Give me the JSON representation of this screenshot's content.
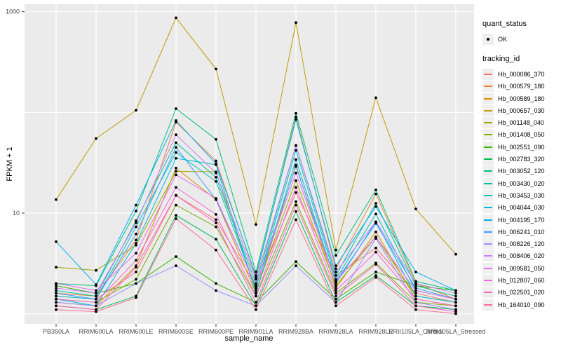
{
  "chart_data": {
    "type": "line",
    "title": "",
    "xlabel": "sample_name",
    "ylabel": "FPKM + 1",
    "y_scale": "log10",
    "ylim": [
      1,
      1000
    ],
    "grid": true,
    "legend_position": "right",
    "y_ticks": [
      {
        "label": "1000",
        "value": 1000
      },
      {
        "label": "10",
        "value": 10
      }
    ],
    "y_gridlines": [
      1,
      10,
      100,
      1000
    ],
    "colors": {
      "panel_bg": "#EBEBEB",
      "grid": "#FFFFFF",
      "tick": "#333333",
      "tick_label": "#4D4D4D",
      "point": "#000000",
      "legend_key_bg": "#EFEFEF"
    },
    "legend": {
      "quant_status_title": "quant_status",
      "quant_status_item": "OK",
      "quant_status_marker": "black-point",
      "tracking_id_title": "tracking_id"
    },
    "x_categories": [
      "PB350LA",
      "RRIM600LA",
      "RRIM600LE",
      "RRIM600SE",
      "RRIM600PE",
      "RRIM901LA",
      "RRIM928BA",
      "RRIM928LA",
      "RRIM928LE",
      "RRII105LA_Control",
      "RRII105LA_Stressed"
    ],
    "series": [
      {
        "name": "Hb_000086_370",
        "color": "#F8766D",
        "values": [
          1.5,
          1.4,
          2.6,
          15,
          8.6,
          1.9,
          16,
          2.4,
          4.5,
          1.6,
          1.3
        ]
      },
      {
        "name": "Hb_000579_180",
        "color": "#EA8331",
        "values": [
          1.6,
          1.5,
          5.4,
          80,
          33,
          2.3,
          90,
          2.8,
          15.5,
          2.0,
          1.4
        ]
      },
      {
        "name": "Hb_000589_180",
        "color": "#D89000",
        "values": [
          1.3,
          1.2,
          3.0,
          28,
          13.6,
          1.6,
          30,
          1.8,
          6.5,
          1.4,
          1.2
        ]
      },
      {
        "name": "Hb_000657_030",
        "color": "#C09B00",
        "values": [
          13.6,
          55,
          105,
          870,
          270,
          7.7,
          780,
          4.3,
          140,
          11,
          3.9
        ]
      },
      {
        "name": "Hb_001148_040",
        "color": "#A3A500",
        "values": [
          2.9,
          2.7,
          4.8,
          26,
          25.7,
          1.7,
          21,
          1.9,
          5.8,
          1.5,
          1.3
        ]
      },
      {
        "name": "Hb_001408_050",
        "color": "#7CAE00",
        "values": [
          1.4,
          1.3,
          2.2,
          12,
          7.3,
          1.5,
          13,
          1.6,
          3.2,
          1.3,
          1.2
        ]
      },
      {
        "name": "Hb_002551_090",
        "color": "#39B600",
        "values": [
          1.9,
          1.6,
          2.0,
          3.7,
          2.0,
          1.3,
          3.3,
          1.4,
          2.6,
          1.9,
          1.7
        ]
      },
      {
        "name": "Hb_002783_320",
        "color": "#00BB4E",
        "values": [
          1.2,
          1.1,
          1.5,
          9.5,
          5.5,
          1.2,
          10.4,
          1.3,
          2.4,
          1.2,
          1.1
        ]
      },
      {
        "name": "Hb_003052_120",
        "color": "#00BF7D",
        "values": [
          2.0,
          1.9,
          10.5,
          109,
          54,
          2.6,
          98,
          3.8,
          17,
          2.1,
          1.7
        ]
      },
      {
        "name": "Hb_003430_020",
        "color": "#00C1A3",
        "values": [
          1.7,
          1.5,
          8.4,
          50,
          22.7,
          2.0,
          47,
          2.4,
          12.5,
          1.9,
          1.5
        ]
      },
      {
        "name": "Hb_003453_030",
        "color": "#00BFC4",
        "values": [
          1.5,
          1.4,
          7.3,
          40,
          20.6,
          1.8,
          42,
          2.2,
          9.8,
          1.7,
          1.4
        ]
      },
      {
        "name": "Hb_004044_030",
        "color": "#00BAE0",
        "values": [
          1.4,
          1.2,
          5.0,
          35,
          30.2,
          1.6,
          34,
          2.0,
          8.2,
          1.5,
          1.3
        ]
      },
      {
        "name": "Hb_004195_170",
        "color": "#00B0F6",
        "values": [
          5.2,
          1.95,
          12,
          83,
          31,
          2.4,
          85,
          3.0,
          11.6,
          2.6,
          1.7
        ]
      },
      {
        "name": "Hb_006241_010",
        "color": "#35A2FF",
        "values": [
          1.6,
          1.4,
          6.2,
          45,
          13.6,
          1.9,
          29,
          2.1,
          7.9,
          1.8,
          1.4
        ]
      },
      {
        "name": "Hb_008226_120",
        "color": "#9590FF",
        "values": [
          1.3,
          1.2,
          2.0,
          3.0,
          1.7,
          1.2,
          3.0,
          1.3,
          5.6,
          1.3,
          1.1
        ]
      },
      {
        "name": "Hb_008406_020",
        "color": "#C77CFF",
        "values": [
          1.8,
          1.6,
          8.0,
          60,
          25,
          2.2,
          47,
          2.6,
          8.2,
          2.0,
          1.6
        ]
      },
      {
        "name": "Hb_009581_050",
        "color": "#E76BF3",
        "values": [
          2.0,
          1.7,
          4.0,
          24,
          14,
          1.9,
          25,
          2.1,
          5.8,
          1.7,
          1.4
        ]
      },
      {
        "name": "Hb_012807_060",
        "color": "#FA62DB",
        "values": [
          1.4,
          1.3,
          3.4,
          18,
          9.7,
          1.5,
          18,
          1.7,
          4.1,
          1.4,
          1.2
        ]
      },
      {
        "name": "Hb_022501_020",
        "color": "#FF62BC",
        "values": [
          1.2,
          1.1,
          2.9,
          15,
          8.0,
          1.3,
          12,
          1.5,
          3.1,
          1.2,
          1.05
        ]
      },
      {
        "name": "Hb_164010_090",
        "color": "#FF6A98",
        "values": [
          1.1,
          1.05,
          1.45,
          8.8,
          4.3,
          1.1,
          8.6,
          1.2,
          2.3,
          1.1,
          1.0
        ]
      }
    ]
  }
}
